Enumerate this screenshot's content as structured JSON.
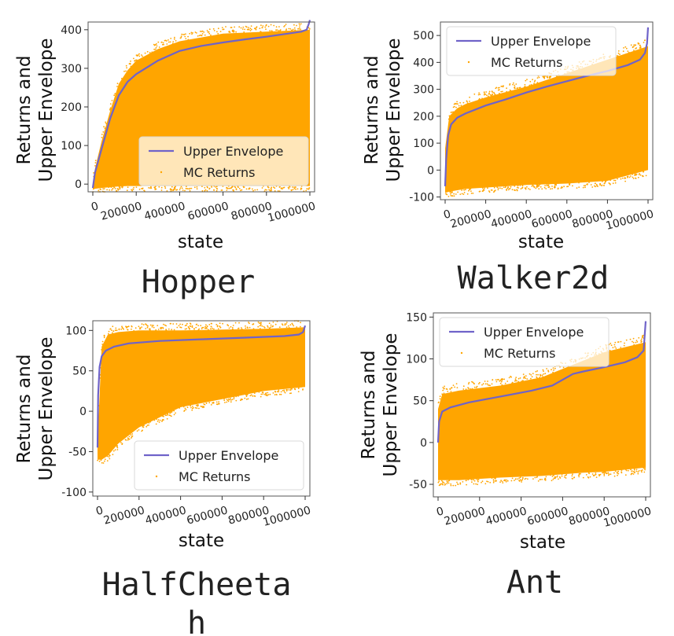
{
  "colors": {
    "envelope": "#6f63c9",
    "returns": "#ffa500",
    "axis": "#555555"
  },
  "legend": {
    "envelope_label": "Upper Envelope",
    "returns_label": "MC Returns"
  },
  "chart_data": [
    {
      "id": "hopper",
      "type": "scatter",
      "caption": "Hopper",
      "caption_lines": [
        "Hopper"
      ],
      "xlabel": "state",
      "ylabel_lines": [
        "Returns and",
        "Upper Envelope"
      ],
      "xlim": [
        0,
        1000000
      ],
      "ylim": [
        -20,
        420
      ],
      "xticks": [
        0,
        200000,
        400000,
        600000,
        800000,
        1000000
      ],
      "yticks": [
        0,
        100,
        200,
        300,
        400
      ],
      "legend_position": "lower-right",
      "series": [
        {
          "name": "Upper Envelope",
          "type": "line",
          "x": [
            0,
            10000,
            40000,
            80000,
            120000,
            160000,
            200000,
            300000,
            400000,
            500000,
            600000,
            700000,
            800000,
            900000,
            960000,
            985000,
            995000,
            1000000
          ],
          "y": [
            -10,
            30,
            90,
            170,
            230,
            265,
            285,
            320,
            345,
            358,
            367,
            375,
            382,
            390,
            395,
            400,
            415,
            425
          ]
        },
        {
          "name": "MC Returns",
          "type": "scatter-band",
          "x": [
            0,
            10000,
            40000,
            80000,
            120000,
            160000,
            200000,
            300000,
            400000,
            600000,
            800000,
            1000000
          ],
          "y_upper": [
            -5,
            40,
            110,
            190,
            260,
            295,
            320,
            350,
            370,
            390,
            395,
            400
          ],
          "y_lower": [
            -15,
            -12,
            -10,
            -8,
            -6,
            -5,
            -5,
            -5,
            -5,
            -5,
            -5,
            -5
          ]
        }
      ]
    },
    {
      "id": "walker2d",
      "type": "scatter",
      "caption": "Walker2d",
      "caption_lines": [
        "Walker2d"
      ],
      "xlabel": "state",
      "ylabel_lines": [
        "Returns and",
        "Upper Envelope"
      ],
      "xlim": [
        0,
        1000000
      ],
      "ylim": [
        -110,
        550
      ],
      "xticks": [
        0,
        200000,
        400000,
        600000,
        800000,
        1000000
      ],
      "yticks": [
        -100,
        0,
        100,
        200,
        300,
        400,
        500
      ],
      "legend_position": "top-left",
      "series": [
        {
          "name": "Upper Envelope",
          "type": "line",
          "x": [
            0,
            5000,
            15000,
            30000,
            60000,
            100000,
            200000,
            300000,
            400000,
            500000,
            600000,
            700000,
            800000,
            900000,
            960000,
            985000,
            995000,
            1000000
          ],
          "y": [
            -60,
            40,
            130,
            170,
            195,
            210,
            240,
            263,
            288,
            310,
            330,
            350,
            368,
            390,
            410,
            435,
            470,
            530
          ]
        },
        {
          "name": "MC Returns",
          "type": "scatter-band",
          "x": [
            0,
            20000,
            60000,
            100000,
            200000,
            400000,
            600000,
            800000,
            1000000
          ],
          "y_upper": [
            80,
            200,
            230,
            245,
            270,
            310,
            360,
            410,
            460
          ],
          "y_lower": [
            -85,
            -80,
            -75,
            -70,
            -65,
            -55,
            -50,
            -40,
            0
          ]
        }
      ]
    },
    {
      "id": "halfcheetah",
      "type": "scatter",
      "caption": "HalfCheetah",
      "caption_lines": [
        "HalfCheeta",
        "h"
      ],
      "xlabel": "state",
      "ylabel_lines": [
        "Returns and",
        "Upper Envelope"
      ],
      "xlim": [
        0,
        1000000
      ],
      "ylim": [
        -105,
        112
      ],
      "xticks": [
        0,
        200000,
        400000,
        600000,
        800000,
        1000000
      ],
      "yticks": [
        -100,
        -50,
        0,
        50,
        100
      ],
      "legend_position": "lower-right",
      "series": [
        {
          "name": "Upper Envelope",
          "type": "line",
          "x": [
            0,
            3000,
            10000,
            20000,
            40000,
            80000,
            150000,
            300000,
            500000,
            700000,
            900000,
            970000,
            990000,
            1000000
          ],
          "y": [
            -45,
            20,
            55,
            68,
            75,
            80,
            84,
            87,
            89,
            91,
            93,
            95,
            98,
            106
          ]
        },
        {
          "name": "MC Returns",
          "type": "scatter-band",
          "x": [
            0,
            20000,
            50000,
            100000,
            200000,
            400000,
            600000,
            800000,
            1000000
          ],
          "y_upper": [
            -40,
            80,
            95,
            98,
            100,
            100,
            101,
            102,
            104
          ],
          "y_lower": [
            -60,
            -60,
            -55,
            -40,
            -20,
            5,
            15,
            25,
            30
          ]
        }
      ]
    },
    {
      "id": "ant",
      "type": "scatter",
      "caption": "Ant",
      "caption_lines": [
        "Ant"
      ],
      "xlabel": "state",
      "ylabel_lines": [
        "Returns and",
        "Upper Envelope"
      ],
      "xlim": [
        0,
        1000000
      ],
      "ylim": [
        -65,
        155
      ],
      "xticks": [
        0,
        200000,
        400000,
        600000,
        800000,
        1000000
      ],
      "yticks": [
        -50,
        0,
        50,
        100,
        150
      ],
      "legend_position": "top-left",
      "series": [
        {
          "name": "Upper Envelope",
          "type": "line",
          "x": [
            0,
            5000,
            20000,
            60000,
            150000,
            300000,
            450000,
            550000,
            600000,
            650000,
            700000,
            800000,
            900000,
            960000,
            990000,
            1000000
          ],
          "y": [
            0,
            25,
            37,
            42,
            48,
            55,
            62,
            68,
            75,
            82,
            85,
            90,
            96,
            102,
            110,
            145
          ]
        },
        {
          "name": "MC Returns",
          "type": "scatter-band",
          "x": [
            0,
            20000,
            100000,
            300000,
            500000,
            600000,
            700000,
            800000,
            1000000
          ],
          "y_upper": [
            40,
            58,
            62,
            68,
            78,
            88,
            98,
            108,
            120
          ],
          "y_lower": [
            -45,
            -45,
            -45,
            -42,
            -40,
            -38,
            -36,
            -35,
            -30
          ]
        }
      ]
    }
  ]
}
